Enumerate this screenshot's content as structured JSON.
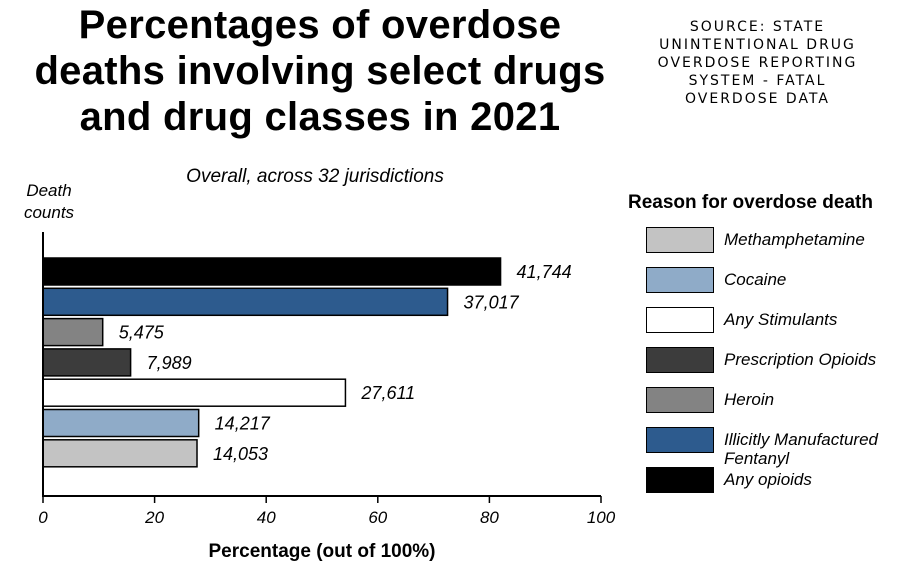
{
  "title": "Percentages of overdose deaths involving select drugs and drug classes in 2021",
  "source": "SOURCE: STATE UNINTENTIONAL DRUG OVERDOSE REPORTING SYSTEM - FATAL OVERDOSE DATA",
  "chart_data": {
    "type": "bar",
    "orientation": "horizontal",
    "title": "Percentages of overdose deaths involving select drugs and drug classes in 2021",
    "subtitle": "Overall, across 32 jurisdictions",
    "xlabel": "Percentage (out of 100%)",
    "ylabel": "Death counts",
    "xlim": [
      0,
      100
    ],
    "xticks": [
      0,
      20,
      40,
      60,
      80,
      100
    ],
    "xtick_labels": [
      "0",
      "20",
      "40",
      "60",
      "80",
      "100"
    ],
    "legend_title": "Reason for overdose death",
    "legend_position": "right",
    "bars": [
      {
        "category": "Any opioids",
        "value": 82,
        "label": "41,744",
        "color": "#000000"
      },
      {
        "category": "Illicitly Manufactured Fentanyl",
        "value": 72.5,
        "label": "37,017",
        "color": "#2d5b8e"
      },
      {
        "category": "Heroin",
        "value": 10.7,
        "label": "5,475",
        "color": "#838383"
      },
      {
        "category": "Prescription Opioids",
        "value": 15.7,
        "label": "7,989",
        "color": "#3c3c3c"
      },
      {
        "category": "Any Stimulants",
        "value": 54.2,
        "label": "27,611",
        "color": "#ffffff"
      },
      {
        "category": "Cocaine",
        "value": 27.9,
        "label": "14,217",
        "color": "#8fabc8"
      },
      {
        "category": "Methamphetamine",
        "value": 27.6,
        "label": "14,053",
        "color": "#c3c3c3"
      }
    ],
    "legend": [
      {
        "label": "Methamphetamine",
        "color": "#c3c3c3"
      },
      {
        "label": "Cocaine",
        "color": "#8fabc8"
      },
      {
        "label": "Any Stimulants",
        "color": "#ffffff"
      },
      {
        "label": "Prescription Opioids",
        "color": "#3c3c3c"
      },
      {
        "label": "Heroin",
        "color": "#838383"
      },
      {
        "label": "Illicitly Manufactured Fentanyl",
        "color": "#2d5b8e"
      },
      {
        "label": "Any opioids",
        "color": "#000000"
      }
    ]
  }
}
